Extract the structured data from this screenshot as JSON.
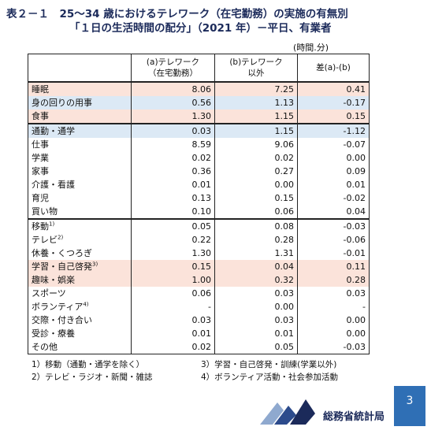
{
  "header": {
    "title_line1": "表２－１　25～34 歳におけるテレワーク（在宅勤務）の実施の有無別",
    "title_line2": "「１日の生活時間の配分」（2021 年）－平日、有業者",
    "unit": "(時間.分)"
  },
  "table": {
    "columns": [
      [
        "(a)テレワーク",
        "（在宅勤務）"
      ],
      [
        "(b)テレワーク",
        "以外"
      ],
      [
        "差(a)-(b)"
      ]
    ],
    "rows": [
      {
        "label": "睡眠",
        "values": [
          "8.06",
          "7.25",
          "0.41"
        ]
      },
      {
        "label": "身の回りの用事",
        "values": [
          "0.56",
          "1.13",
          "-0.17"
        ]
      },
      {
        "label": "食事",
        "values": [
          "1.30",
          "1.15",
          "0.15"
        ]
      },
      {
        "label": "通勤・通学",
        "values": [
          "0.03",
          "1.15",
          "-1.12"
        ]
      },
      {
        "label": "仕事",
        "values": [
          "8.59",
          "9.06",
          "-0.07"
        ]
      },
      {
        "label": "学業",
        "values": [
          "0.02",
          "0.02",
          "0.00"
        ]
      },
      {
        "label": "家事",
        "values": [
          "0.36",
          "0.27",
          "0.09"
        ]
      },
      {
        "label": "介護・看護",
        "values": [
          "0.01",
          "0.00",
          "0.01"
        ]
      },
      {
        "label": "育児",
        "values": [
          "0.13",
          "0.15",
          "-0.02"
        ]
      },
      {
        "label": "買い物",
        "values": [
          "0.10",
          "0.06",
          "0.04"
        ]
      },
      {
        "label": "移動",
        "note": "1)",
        "values": [
          "0.05",
          "0.08",
          "-0.03"
        ]
      },
      {
        "label": "テレビ",
        "note": "2)",
        "values": [
          "0.22",
          "0.28",
          "-0.06"
        ]
      },
      {
        "label": "休養・くつろぎ",
        "values": [
          "1.30",
          "1.31",
          "-0.01"
        ]
      },
      {
        "label": "学習・自己啓発",
        "note": "3)",
        "values": [
          "0.15",
          "0.04",
          "0.11"
        ]
      },
      {
        "label": "趣味・娯楽",
        "values": [
          "1.00",
          "0.32",
          "0.28"
        ]
      },
      {
        "label": "スポーツ",
        "values": [
          "0.06",
          "0.03",
          "0.03"
        ]
      },
      {
        "label": "ボランティア",
        "note": "4)",
        "values": [
          "-",
          "0.00",
          "-"
        ]
      },
      {
        "label": "交際・付き合い",
        "values": [
          "0.03",
          "0.03",
          "0.00"
        ]
      },
      {
        "label": "受診・療養",
        "values": [
          "0.01",
          "0.01",
          "0.00"
        ]
      },
      {
        "label": "その他",
        "values": [
          "0.02",
          "0.05",
          "-0.03"
        ]
      }
    ]
  },
  "footnotes": [
    "1）移動（通勤・通学を除く）",
    "3）学習・自己啓発・訓練(学業以外)",
    "2）テレビ・ラジオ・新聞・雑誌",
    "4）ボランティア活動・社会参加活動"
  ],
  "footer": {
    "organization": "総務省統計局",
    "page": "3"
  }
}
